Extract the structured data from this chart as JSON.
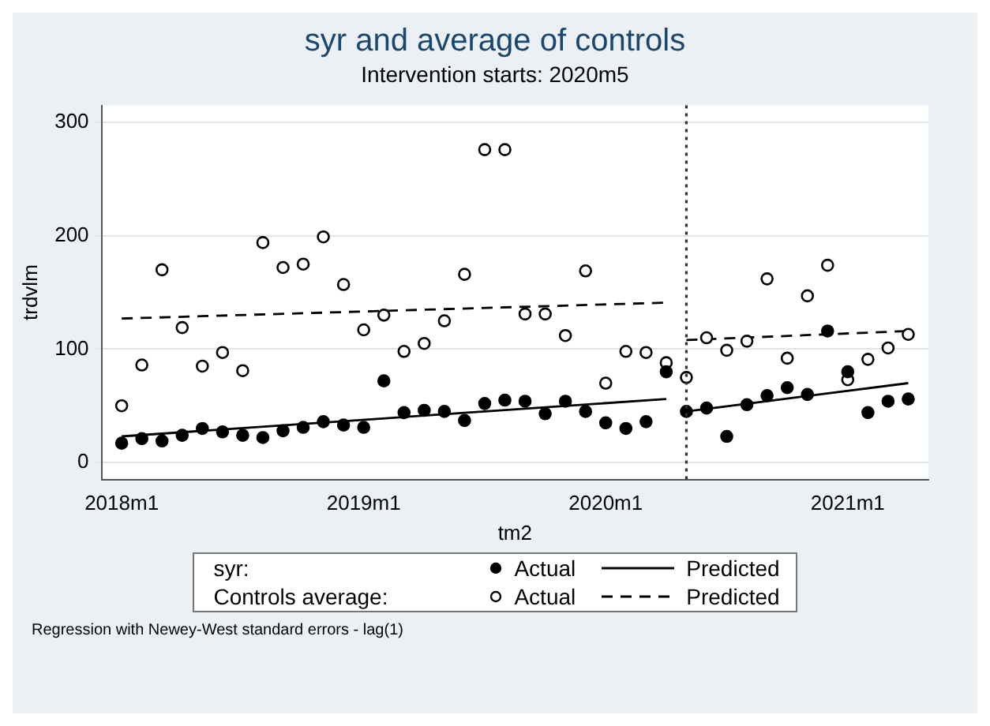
{
  "chart_data": {
    "type": "scatter",
    "title": "syr and average of controls",
    "subtitle": "Intervention starts: 2020m5",
    "xlabel": "tm2",
    "ylabel": "trdvlm",
    "xlim": [
      "2017-12",
      "2021-05"
    ],
    "xticks": [
      {
        "value": "2018-01",
        "label": "2018m1"
      },
      {
        "value": "2019-01",
        "label": "2019m1"
      },
      {
        "value": "2020-01",
        "label": "2020m1"
      },
      {
        "value": "2021-01",
        "label": "2021m1"
      }
    ],
    "ylim": [
      -15,
      315
    ],
    "yticks": [
      0,
      100,
      200,
      300
    ],
    "grid": "y",
    "legend": "bottom",
    "series": [
      {
        "name": "Actual",
        "marker": "circle",
        "color": "#000000",
        "x": [
          "2018-01",
          "2018-02",
          "2018-03",
          "2018-04",
          "2018-05",
          "2018-06",
          "2018-07",
          "2018-08",
          "2018-09",
          "2018-10",
          "2018-11",
          "2018-12",
          "2019-01",
          "2019-02",
          "2019-03",
          "2019-04",
          "2019-05",
          "2019-06",
          "2019-07",
          "2019-08",
          "2019-09",
          "2019-10",
          "2019-11",
          "2019-12",
          "2020-01",
          "2020-02",
          "2020-03",
          "2020-04",
          "2020-05",
          "2020-06",
          "2020-07",
          "2020-08",
          "2020-09",
          "2020-10",
          "2020-11",
          "2020-12",
          "2021-01",
          "2021-02",
          "2021-03",
          "2021-04"
        ],
        "values": [
          17,
          21,
          19,
          24,
          30,
          27,
          24,
          22,
          28,
          31,
          36,
          33,
          31,
          72,
          44,
          46,
          45,
          37,
          52,
          55,
          54,
          43,
          54,
          45,
          35,
          30,
          36,
          80,
          45,
          48,
          23,
          51,
          59,
          66,
          60,
          116,
          80,
          44,
          54,
          56
        ]
      },
      {
        "name": "Predicted",
        "type": "line",
        "marker": "none",
        "line_style": "solid",
        "color": "#000000",
        "x": [
          "2018-01",
          "2020-04",
          "2020-05",
          "2021-04"
        ],
        "values": [
          23,
          56,
          45,
          70
        ]
      },
      {
        "name": "Actual",
        "marker": "circle",
        "color": "#ffffff",
        "x": [
          "2018-01",
          "2018-02",
          "2018-03",
          "2018-04",
          "2018-05",
          "2018-06",
          "2018-07",
          "2018-08",
          "2018-09",
          "2018-10",
          "2018-11",
          "2018-12",
          "2019-01",
          "2019-02",
          "2019-03",
          "2019-04",
          "2019-05",
          "2019-06",
          "2019-07",
          "2019-08",
          "2019-09",
          "2019-10",
          "2019-11",
          "2019-12",
          "2020-01",
          "2020-02",
          "2020-03",
          "2020-04",
          "2020-05",
          "2020-06",
          "2020-07",
          "2020-08",
          "2020-09",
          "2020-10",
          "2020-11",
          "2020-12",
          "2021-01",
          "2021-02",
          "2021-03",
          "2021-04"
        ],
        "values": [
          50,
          86,
          170,
          119,
          85,
          97,
          81,
          194,
          172,
          175,
          199,
          157,
          117,
          130,
          98,
          105,
          125,
          166,
          276,
          276,
          131,
          131,
          112,
          169,
          70,
          98,
          97,
          88,
          75,
          110,
          99,
          107,
          162,
          92,
          147,
          174,
          73,
          91,
          101,
          113
        ]
      },
      {
        "name": "Predicted",
        "type": "line",
        "marker": "none",
        "line_style": "dashed",
        "color": "#000000",
        "x": [
          "2018-01",
          "2020-04",
          "2020-05",
          "2021-04"
        ],
        "values": [
          127,
          141,
          108,
          116
        ]
      }
    ],
    "ref_lines": [
      {
        "axis": "x",
        "value": "2020-05",
        "line_style": "dotted",
        "color": "#333333"
      }
    ],
    "annotations": [
      "syr:",
      "Controls average:",
      "Regression with Newey-West standard errors - lag(1)"
    ]
  }
}
